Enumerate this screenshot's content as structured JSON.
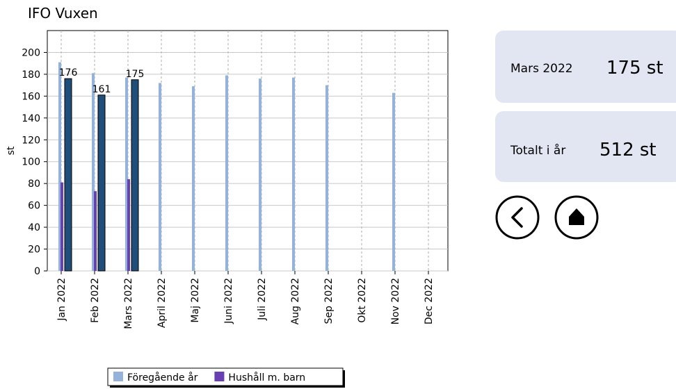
{
  "chart_data": {
    "type": "bar",
    "title": "IFO Vuxen",
    "ylabel": "st",
    "categories": [
      "Jan 2022",
      "Feb 2022",
      "Mars 2022",
      "April 2022",
      "Maj 2022",
      "Juni 2022",
      "Juli 2022",
      "Aug 2022",
      "Sep 2022",
      "Okt 2022",
      "Nov 2022",
      "Dec 2022"
    ],
    "series": [
      {
        "name": "Föregående år",
        "color": "#94b2da",
        "values": [
          191,
          181,
          177,
          172,
          169,
          179,
          176,
          177,
          170,
          null,
          163,
          null
        ]
      },
      {
        "name": "Hushåll m. barn",
        "color": "#6940b4",
        "values": [
          81,
          73,
          84,
          null,
          null,
          null,
          null,
          null,
          null,
          null,
          null,
          null
        ]
      },
      {
        "color": "#1f4e79",
        "show_labels": true,
        "values": [
          176,
          161,
          175,
          null,
          null,
          null,
          null,
          null,
          null,
          null,
          null,
          null
        ]
      }
    ],
    "ylim": [
      0,
      220
    ],
    "yticks": [
      0,
      20,
      40,
      60,
      80,
      100,
      120,
      140,
      160,
      180,
      200
    ],
    "grid": true
  },
  "cards": [
    {
      "label": "Mars 2022",
      "value": "175 st"
    },
    {
      "label": "Totalt i år",
      "value": "512 st"
    }
  ]
}
